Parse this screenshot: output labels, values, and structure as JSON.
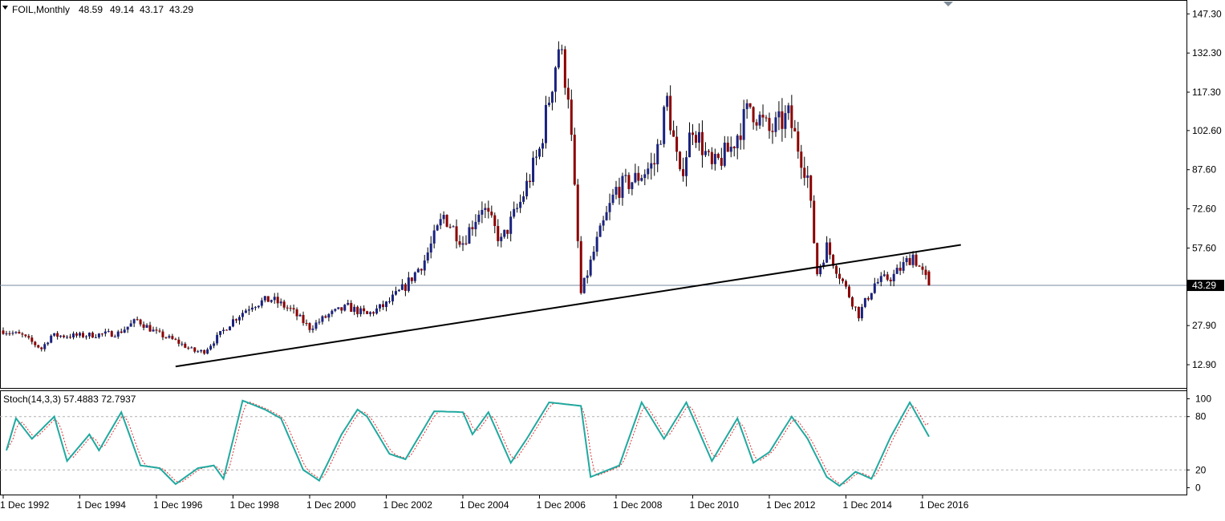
{
  "chart_data": {
    "type": "candlestick",
    "symbol_header": "FOIL,Monthly",
    "ohlc_readout": [
      "48.59",
      "49.14",
      "43.17",
      "43.29"
    ],
    "current_price_label": "43.29",
    "current_price": 43.29,
    "colors": {
      "up_candle": "#1a237e",
      "down_candle": "#8b0000",
      "wick": "#000000",
      "trendline": "#000000",
      "price_line": "#7a8ba3",
      "stoch_main": "#20a9a0",
      "stoch_signal": "#e03030",
      "axis": "#000000",
      "background": "#ffffff"
    },
    "x_axis": {
      "tick_labels": [
        "1 Dec 1992",
        "1 Dec 1994",
        "1 Dec 1996",
        "1 Dec 1998",
        "1 Dec 2000",
        "1 Dec 2002",
        "1 Dec 2004",
        "1 Dec 2006",
        "1 Dec 2008",
        "1 Dec 2010",
        "1 Dec 2012",
        "1 Dec 2014",
        "1 Dec 2016"
      ],
      "tick_years": [
        1992,
        1994,
        1996,
        1998,
        2000,
        2002,
        2004,
        2006,
        2008,
        2010,
        2012,
        2014,
        2016
      ]
    },
    "price_axis": {
      "ticks": [
        147.3,
        132.3,
        117.3,
        102.6,
        87.6,
        72.6,
        57.6,
        27.9,
        12.9
      ],
      "tick_labels": [
        "147.30",
        "132.30",
        "117.30",
        "102.60",
        "87.60",
        "72.60",
        "57.60",
        "27.90",
        "12.90"
      ],
      "ylim": [
        4.0,
        152.0
      ]
    },
    "price_anchors": [
      [
        "1992-12",
        26
      ],
      [
        "1993-06",
        24
      ],
      [
        "1993-12",
        19
      ],
      [
        "1994-03",
        24
      ],
      [
        "1994-12",
        24
      ],
      [
        "1995-12",
        25
      ],
      [
        "1996-06",
        30
      ],
      [
        "1996-12",
        25
      ],
      [
        "1997-06",
        22
      ],
      [
        "1997-12",
        18
      ],
      [
        "1998-03",
        18
      ],
      [
        "1998-12",
        30
      ],
      [
        "1999-06",
        36
      ],
      [
        "1999-12",
        38
      ],
      [
        "2000-06",
        34
      ],
      [
        "2000-12",
        27
      ],
      [
        "2001-06",
        32
      ],
      [
        "2001-12",
        35
      ],
      [
        "2002-06",
        32
      ],
      [
        "2002-12",
        36
      ],
      [
        "2003-06",
        43
      ],
      [
        "2003-12",
        53
      ],
      [
        "2004-06",
        70
      ],
      [
        "2004-12",
        60
      ],
      [
        "2005-06",
        74
      ],
      [
        "2005-12",
        60
      ],
      [
        "2006-06",
        75
      ],
      [
        "2006-12",
        95
      ],
      [
        "2007-06",
        135
      ],
      [
        "2007-09",
        118
      ],
      [
        "2008-01",
        40
      ],
      [
        "2008-06",
        60
      ],
      [
        "2008-12",
        80
      ],
      [
        "2009-06",
        84
      ],
      [
        "2009-12",
        90
      ],
      [
        "2010-04",
        114
      ],
      [
        "2010-08",
        84
      ],
      [
        "2010-12",
        105
      ],
      [
        "2011-06",
        88
      ],
      [
        "2011-12",
        96
      ],
      [
        "2012-06",
        112
      ],
      [
        "2012-12",
        102
      ],
      [
        "2013-06",
        108
      ],
      [
        "2013-12",
        85
      ],
      [
        "2014-03",
        48
      ],
      [
        "2014-06",
        58
      ],
      [
        "2014-12",
        42
      ],
      [
        "2015-04",
        32
      ],
      [
        "2015-09",
        44
      ],
      [
        "2016-03",
        47
      ],
      [
        "2016-09",
        55
      ],
      [
        "2017-02",
        43.29
      ]
    ],
    "trendline": {
      "from": {
        "date": "1997-06",
        "price": 12.2
      },
      "to": {
        "date": "2017-12",
        "price": 58.8
      }
    },
    "stochastic": {
      "label": "Stoch(14,3,3) 57.4883 72.7937",
      "main_value": 57.4883,
      "signal_value": 72.7937,
      "levels": [
        80,
        20
      ],
      "axis_ticks": [
        100,
        80,
        20,
        0
      ],
      "ylim": [
        -5,
        105
      ],
      "main_anchors": [
        [
          "1993-01",
          42
        ],
        [
          "1993-04",
          78
        ],
        [
          "1993-09",
          55
        ],
        [
          "1994-04",
          80
        ],
        [
          "1994-08",
          30
        ],
        [
          "1995-03",
          60
        ],
        [
          "1995-06",
          42
        ],
        [
          "1996-01",
          85
        ],
        [
          "1996-07",
          25
        ],
        [
          "1997-01",
          22
        ],
        [
          "1997-06",
          4
        ],
        [
          "1998-01",
          22
        ],
        [
          "1998-06",
          25
        ],
        [
          "1998-09",
          10
        ],
        [
          "1999-03",
          98
        ],
        [
          "1999-10",
          88
        ],
        [
          "2000-03",
          78
        ],
        [
          "2000-10",
          20
        ],
        [
          "2001-03",
          8
        ],
        [
          "2001-10",
          60
        ],
        [
          "2002-03",
          88
        ],
        [
          "2002-06",
          80
        ],
        [
          "2003-01",
          38
        ],
        [
          "2003-06",
          32
        ],
        [
          "2004-03",
          86
        ],
        [
          "2004-12",
          85
        ],
        [
          "2005-03",
          60
        ],
        [
          "2005-08",
          85
        ],
        [
          "2006-03",
          28
        ],
        [
          "2006-08",
          55
        ],
        [
          "2007-03",
          96
        ],
        [
          "2008-01",
          92
        ],
        [
          "2008-04",
          12
        ],
        [
          "2009-01",
          25
        ],
        [
          "2009-08",
          96
        ],
        [
          "2010-03",
          55
        ],
        [
          "2010-10",
          96
        ],
        [
          "2011-06",
          30
        ],
        [
          "2012-02",
          78
        ],
        [
          "2012-07",
          28
        ],
        [
          "2012-12",
          40
        ],
        [
          "2013-07",
          80
        ],
        [
          "2013-12",
          55
        ],
        [
          "2014-06",
          12
        ],
        [
          "2014-10",
          2
        ],
        [
          "2015-03",
          18
        ],
        [
          "2015-08",
          10
        ],
        [
          "2016-02",
          57
        ],
        [
          "2016-08",
          96
        ],
        [
          "2017-02",
          57.49
        ]
      ]
    }
  }
}
